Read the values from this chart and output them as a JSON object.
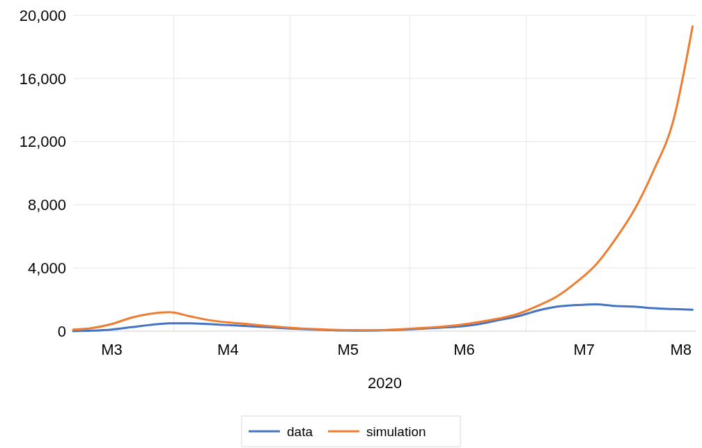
{
  "chart_data": {
    "type": "line",
    "xlabel": "2020",
    "x": [
      "2020-03-06",
      "2020-03-11",
      "2020-03-16",
      "2020-03-21",
      "2020-03-26",
      "2020-03-31",
      "2020-04-05",
      "2020-04-10",
      "2020-04-15",
      "2020-04-20",
      "2020-04-25",
      "2020-04-30",
      "2020-05-05",
      "2020-05-10",
      "2020-05-15",
      "2020-05-20",
      "2020-05-25",
      "2020-05-30",
      "2020-06-04",
      "2020-06-09",
      "2020-06-14",
      "2020-06-19",
      "2020-06-24",
      "2020-06-29",
      "2020-07-04",
      "2020-07-09",
      "2020-07-14",
      "2020-07-19",
      "2020-07-24",
      "2020-07-29",
      "2020-08-03",
      "2020-08-08",
      "2020-08-13"
    ],
    "series": [
      {
        "name": "data",
        "color": "#4472c4",
        "values": [
          0,
          30,
          100,
          250,
          400,
          500,
          500,
          450,
          380,
          320,
          250,
          180,
          120,
          80,
          40,
          30,
          50,
          90,
          150,
          220,
          300,
          450,
          700,
          950,
          1300,
          1550,
          1650,
          1700,
          1600,
          1550,
          1450,
          1400,
          1350
        ]
      },
      {
        "name": "simulation",
        "color": "#ed7d31",
        "values": [
          100,
          200,
          450,
          850,
          1100,
          1200,
          950,
          700,
          550,
          450,
          330,
          230,
          150,
          100,
          70,
          60,
          70,
          120,
          200,
          280,
          400,
          580,
          800,
          1100,
          1600,
          2200,
          3100,
          4200,
          5800,
          7700,
          10200,
          13300,
          19300
        ]
      }
    ],
    "xlim": [
      "2020-03-06",
      "2020-08-14"
    ],
    "xticks": [
      {
        "value": "2020-04-01",
        "label": null
      },
      {
        "value": "2020-05-01",
        "label": null
      },
      {
        "value": "2020-06-01",
        "label": null
      },
      {
        "value": "2020-07-01",
        "label": null
      },
      {
        "value": "2020-08-01",
        "label": null
      },
      {
        "value": "2020-03-16",
        "label": "M3"
      },
      {
        "value": "2020-04-15",
        "label": "M4"
      },
      {
        "value": "2020-05-16",
        "label": "M5"
      },
      {
        "value": "2020-06-15",
        "label": "M6"
      },
      {
        "value": "2020-07-16",
        "label": "M7"
      },
      {
        "value": "2020-08-10",
        "label": "M8"
      }
    ],
    "ylim": [
      0,
      20000
    ],
    "yticks": [
      {
        "value": 0,
        "label": "0"
      },
      {
        "value": 4000,
        "label": "4,000"
      },
      {
        "value": 8000,
        "label": "8,000"
      },
      {
        "value": 12000,
        "label": "12,000"
      },
      {
        "value": 16000,
        "label": "16,000"
      },
      {
        "value": 20000,
        "label": "20,000"
      }
    ],
    "grid": true,
    "legend": "bottom",
    "line_style": "solid"
  }
}
